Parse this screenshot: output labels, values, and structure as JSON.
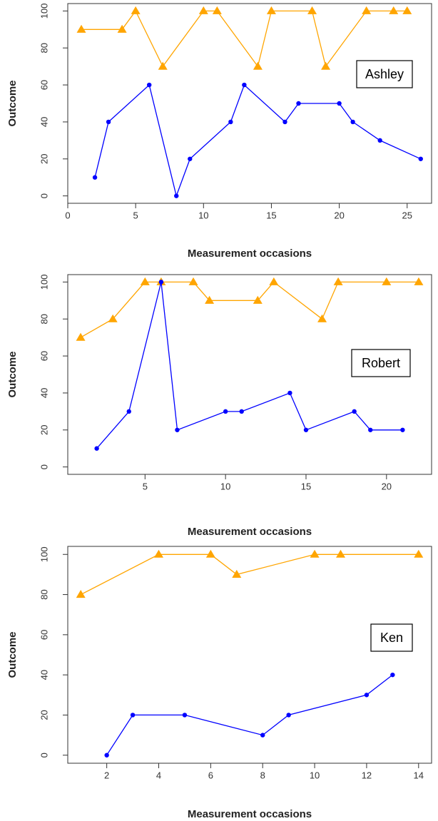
{
  "chart_data": [
    {
      "type": "line",
      "annotation": "Ashley",
      "xlabel": "Measurement occasions",
      "ylabel": "Outcome",
      "xlim": [
        0,
        26.8
      ],
      "ylim": [
        -4,
        104
      ],
      "xticks": [
        0,
        5,
        10,
        15,
        20,
        25
      ],
      "yticks": [
        0,
        20,
        40,
        60,
        80,
        100
      ],
      "grid": false,
      "colors": {
        "orange": "#FFA500",
        "blue": "#0000FF"
      },
      "series": [
        {
          "color": "#FFA500",
          "marker": "triangle",
          "x": [
            1,
            4,
            5,
            7,
            10,
            11,
            14,
            15,
            18,
            19,
            22,
            24,
            25
          ],
          "y": [
            90,
            90,
            100,
            70,
            100,
            100,
            70,
            100,
            100,
            70,
            100,
            100,
            100
          ]
        },
        {
          "color": "#0000FF",
          "marker": "circle",
          "x": [
            2,
            3,
            6,
            8,
            9,
            12,
            13,
            16,
            17,
            20,
            21,
            23,
            26
          ],
          "y": [
            10,
            40,
            60,
            0,
            20,
            40,
            60,
            40,
            50,
            50,
            40,
            30,
            20
          ]
        }
      ]
    },
    {
      "type": "line",
      "annotation": "Robert",
      "xlabel": "Measurement occasions",
      "ylabel": "Outcome",
      "xlim": [
        0.2,
        22.8
      ],
      "ylim": [
        -4,
        104
      ],
      "xticks": [
        5,
        10,
        15,
        20
      ],
      "yticks": [
        0,
        20,
        40,
        60,
        80,
        100
      ],
      "grid": false,
      "colors": {
        "orange": "#FFA500",
        "blue": "#0000FF"
      },
      "series": [
        {
          "color": "#FFA500",
          "marker": "triangle",
          "x": [
            1,
            3,
            5,
            6,
            8,
            9,
            12,
            13,
            16,
            17,
            20,
            22
          ],
          "y": [
            70,
            80,
            100,
            100,
            100,
            90,
            90,
            100,
            80,
            100,
            100,
            100
          ]
        },
        {
          "color": "#0000FF",
          "marker": "circle",
          "x": [
            2,
            4,
            6,
            7,
            10,
            11,
            14,
            15,
            18,
            19,
            21
          ],
          "y": [
            10,
            30,
            100,
            20,
            30,
            30,
            40,
            20,
            30,
            20,
            20
          ]
        }
      ]
    },
    {
      "type": "line",
      "annotation": "Ken",
      "xlabel": "Measurement occasions",
      "ylabel": "Outcome",
      "xlim": [
        0.5,
        14.5
      ],
      "ylim": [
        -4,
        104
      ],
      "xticks": [
        2,
        4,
        6,
        8,
        10,
        12,
        14
      ],
      "yticks": [
        0,
        20,
        40,
        60,
        80,
        100
      ],
      "grid": false,
      "colors": {
        "orange": "#FFA500",
        "blue": "#0000FF"
      },
      "series": [
        {
          "color": "#FFA500",
          "marker": "triangle",
          "x": [
            1,
            4,
            6,
            7,
            10,
            11,
            14
          ],
          "y": [
            80,
            100,
            100,
            90,
            100,
            100,
            100
          ]
        },
        {
          "color": "#0000FF",
          "marker": "circle",
          "x": [
            2,
            3,
            5,
            8,
            9,
            12,
            13
          ],
          "y": [
            0,
            20,
            20,
            10,
            20,
            30,
            40
          ]
        }
      ]
    }
  ]
}
